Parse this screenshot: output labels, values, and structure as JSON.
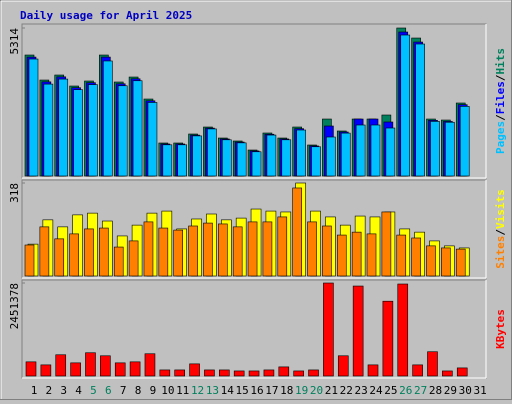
{
  "chart_data": [
    {
      "type": "bar",
      "title": "Daily usage for April 2025",
      "legend_separator": "/",
      "ylim": [
        0,
        5314
      ],
      "yticks": [
        5314
      ],
      "series": [
        {
          "name": "Hits",
          "color": "#00805c",
          "values": [
            4344,
            3446,
            3626,
            3231,
            3411,
            4344,
            3375,
            3554,
            2764,
            1185,
            1185,
            1508,
            1759,
            1364,
            1257,
            933,
            1544,
            1364,
            1759,
            1113,
            2046,
            1616,
            2046,
            2046,
            2190,
            5314,
            4954,
            2046,
            2010,
            2621,
            0
          ]
        },
        {
          "name": "Files",
          "color": "#0000ff",
          "values": [
            4270,
            3380,
            3560,
            3170,
            3350,
            4270,
            3310,
            3490,
            2700,
            1150,
            1150,
            1470,
            1720,
            1330,
            1220,
            900,
            1500,
            1330,
            1700,
            1080,
            1795,
            1580,
            2046,
            2046,
            1939,
            5170,
            4810,
            2000,
            1960,
            2560,
            0
          ]
        },
        {
          "name": "Pages",
          "color": "#00c0ff",
          "values": [
            4200,
            3300,
            3480,
            3100,
            3280,
            4130,
            3240,
            3420,
            2640,
            1120,
            1120,
            1440,
            1690,
            1300,
            1190,
            870,
            1470,
            1300,
            1651,
            1050,
            1400,
            1540,
            1831,
            1831,
            1723,
            5062,
            4739,
            1960,
            1930,
            2500,
            0
          ]
        }
      ]
    },
    {
      "type": "bar",
      "legend_separator": "/",
      "ylim": [
        0,
        318
      ],
      "yticks": [
        318
      ],
      "series": [
        {
          "name": "Visits",
          "color": "#ffff00",
          "values": [
            109,
            192,
            168,
            209,
            215,
            188,
            137,
            174,
            215,
            222,
            161,
            195,
            212,
            192,
            198,
            229,
            222,
            219,
            318,
            222,
            202,
            174,
            205,
            202,
            219,
            161,
            150,
            120,
            103,
            96,
            0
          ]
        },
        {
          "name": "Sites",
          "color": "#ff8000",
          "values": [
            106,
            168,
            127,
            144,
            161,
            164,
            99,
            120,
            185,
            164,
            157,
            171,
            181,
            178,
            168,
            185,
            185,
            202,
            301,
            185,
            171,
            140,
            150,
            144,
            219,
            140,
            130,
            103,
            96,
            92,
            0
          ]
        }
      ]
    },
    {
      "type": "bar",
      "ylim": [
        0,
        2451378
      ],
      "yticks": [
        2451378
      ],
      "categories": [
        "1",
        "2",
        "3",
        "4",
        "5",
        "6",
        "7",
        "8",
        "9",
        "10",
        "11",
        "12",
        "13",
        "14",
        "15",
        "16",
        "17",
        "18",
        "19",
        "20",
        "21",
        "22",
        "23",
        "24",
        "25",
        "26",
        "27",
        "28",
        "29",
        "30",
        "31"
      ],
      "category_colors": [
        "#000000",
        "#000000",
        "#000000",
        "#000000",
        "#00805c",
        "#00805c",
        "#000000",
        "#000000",
        "#000000",
        "#000000",
        "#000000",
        "#00805c",
        "#00805c",
        "#000000",
        "#000000",
        "#000000",
        "#000000",
        "#000000",
        "#00805c",
        "#00805c",
        "#000000",
        "#000000",
        "#000000",
        "#000000",
        "#000000",
        "#00805c",
        "#00805c",
        "#000000",
        "#000000",
        "#000000",
        "#000000"
      ],
      "series": [
        {
          "name": "KBytes",
          "color": "#ff0000",
          "values": [
            373000,
            293000,
            559500,
            346400,
            612800,
            532900,
            346400,
            373000,
            586200,
            159900,
            159900,
            319700,
            159900,
            159900,
            133200,
            133200,
            159900,
            239800,
            133200,
            159900,
            2451378,
            532900,
            2371400,
            293100,
            1971700,
            2424700,
            293100,
            639500,
            133200,
            213200,
            0
          ]
        }
      ]
    }
  ]
}
